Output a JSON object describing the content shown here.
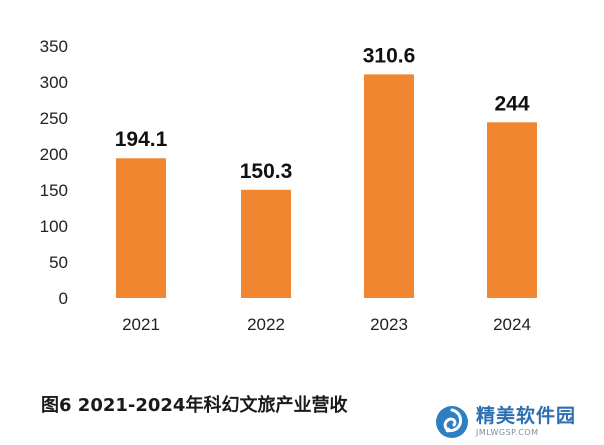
{
  "chart_data": {
    "type": "bar",
    "categories": [
      "2021",
      "2022",
      "2023",
      "2024"
    ],
    "values": [
      194.1,
      150.3,
      310.6,
      244
    ],
    "value_labels": [
      "194.1",
      "150.3",
      "310.6",
      "244"
    ],
    "yticks": [
      "0",
      "50",
      "100",
      "150",
      "200",
      "250",
      "300",
      "350"
    ],
    "ylim": [
      0,
      350
    ],
    "grid": false,
    "bar_color": "#f08630"
  },
  "caption": "图6  2021-2024年科幻文旅产业营收",
  "watermark": {
    "title": "精美软件园",
    "url": "JMLWGSP.COM",
    "logo_color": "#2d7fc1",
    "logo_icon": "swirl-logo-icon"
  }
}
